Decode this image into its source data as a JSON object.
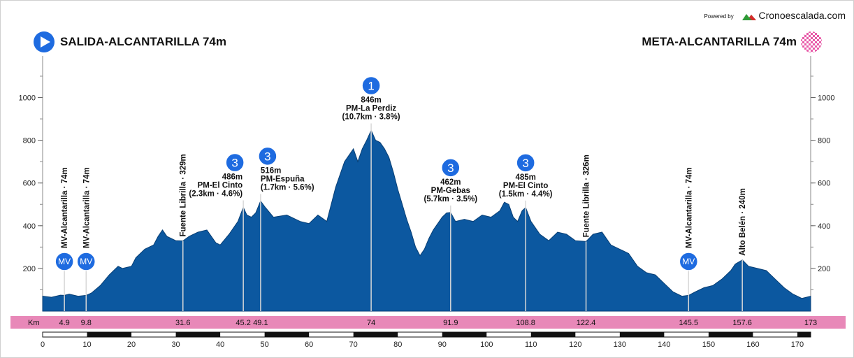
{
  "header": {
    "start_title": "SALIDA-ALCANTARILLA 74m",
    "finish_title": "META-ALCANTARILLA 74m",
    "powered_by": "Powered by",
    "brand_name": "Cronoescalada.com"
  },
  "chart_data": {
    "type": "area",
    "xlim": [
      0,
      173
    ],
    "ylim": [
      0,
      1150
    ],
    "y_ticks": [
      200,
      400,
      600,
      800,
      1000
    ],
    "x_ticks": [
      0,
      10,
      20,
      30,
      40,
      50,
      60,
      70,
      80,
      90,
      100,
      110,
      120,
      130,
      140,
      150,
      160,
      170
    ],
    "km_label": "Km",
    "km_marks": [
      "4.9",
      "9.8",
      "31.6",
      "45.2",
      "49.1",
      "74",
      "91.9",
      "108.8",
      "122.4",
      "145.5",
      "157.6",
      "173"
    ],
    "profile": {
      "x": [
        0,
        2,
        4,
        4.9,
        6,
        8,
        9.8,
        11,
        13,
        15,
        17,
        18,
        20,
        21,
        23,
        25,
        26,
        27,
        28,
        30,
        31.6,
        33,
        35,
        37,
        39,
        40,
        42,
        44,
        45.2,
        46,
        47,
        48,
        49.1,
        50,
        52,
        55,
        58,
        60,
        62,
        64,
        66,
        68,
        70,
        71,
        72,
        73,
        74,
        75,
        76,
        77,
        78,
        79,
        80,
        81,
        82,
        83,
        84,
        85,
        86,
        87,
        88,
        89,
        90,
        91,
        91.9,
        93,
        95,
        97,
        99,
        101,
        103,
        104,
        105,
        106,
        107,
        108,
        108.8,
        110,
        112,
        114,
        116,
        118,
        120,
        122.4,
        124,
        126,
        128,
        130,
        132,
        134,
        136,
        138,
        140,
        142,
        144,
        145.5,
        147,
        149,
        151,
        153,
        155,
        156,
        157.6,
        159,
        161,
        163,
        165,
        167,
        169,
        171,
        173
      ],
      "y": [
        70,
        65,
        75,
        74,
        80,
        70,
        74,
        85,
        120,
        170,
        210,
        200,
        210,
        250,
        290,
        310,
        350,
        380,
        350,
        330,
        329,
        350,
        370,
        380,
        320,
        310,
        360,
        420,
        486,
        450,
        440,
        460,
        516,
        490,
        440,
        450,
        420,
        410,
        450,
        420,
        580,
        700,
        760,
        700,
        760,
        800,
        846,
        800,
        790,
        760,
        720,
        650,
        570,
        500,
        430,
        370,
        300,
        260,
        290,
        340,
        380,
        410,
        440,
        460,
        462,
        420,
        430,
        420,
        450,
        440,
        470,
        510,
        500,
        440,
        420,
        470,
        485,
        420,
        360,
        330,
        370,
        360,
        330,
        326,
        360,
        370,
        310,
        290,
        270,
        210,
        180,
        170,
        130,
        90,
        70,
        74,
        90,
        110,
        120,
        150,
        190,
        220,
        240,
        210,
        200,
        190,
        150,
        110,
        80,
        60,
        70
      ]
    },
    "vertical_labels": [
      {
        "km": 4.9,
        "elev": 74,
        "text": "MV-Alcantarilla · 74m",
        "badge": "MV"
      },
      {
        "km": 9.8,
        "elev": 74,
        "text": "MV-Alcantarilla · 74m",
        "badge": "MV"
      },
      {
        "km": 31.6,
        "elev": 329,
        "text": "Fuente Librilla · 329m",
        "badge": ""
      },
      {
        "km": 122.4,
        "elev": 326,
        "text": "Fuente Librilla · 326m",
        "badge": ""
      },
      {
        "km": 145.5,
        "elev": 74,
        "text": "MV-Alcantarilla · 74m",
        "badge": "MV"
      },
      {
        "km": 157.6,
        "elev": 240,
        "text": "Alto Belén · 240m",
        "badge": ""
      }
    ],
    "climbs": [
      {
        "km": 45.2,
        "elev": 486,
        "category": "3",
        "alt": "486m",
        "name": "PM-El Cinto",
        "detail": "(2.3km · 4.6%)"
      },
      {
        "km": 49.1,
        "elev": 516,
        "category": "3",
        "alt": "516m",
        "name": "PM-Espuña",
        "detail": "(1.7km · 5.6%)"
      },
      {
        "km": 74,
        "elev": 846,
        "category": "1",
        "alt": "846m",
        "name": "PM-La Perdiz",
        "detail": "(10.7km · 3.8%)"
      },
      {
        "km": 91.9,
        "elev": 462,
        "category": "3",
        "alt": "462m",
        "name": "PM-Gebas",
        "detail": "(5.7km · 3.5%)"
      },
      {
        "km": 108.8,
        "elev": 485,
        "category": "3",
        "alt": "485m",
        "name": "PM-El Cinto",
        "detail": "(1.5km · 4.4%)"
      }
    ],
    "colors": {
      "fill": "#0c58a0",
      "km_band": "#e888b8",
      "badge": "#1e6be0"
    }
  }
}
